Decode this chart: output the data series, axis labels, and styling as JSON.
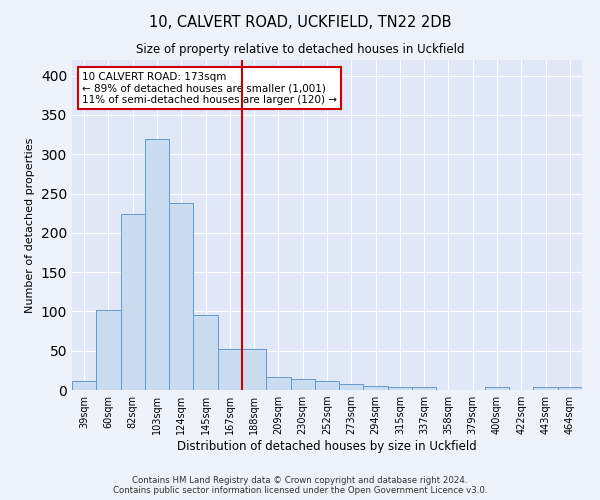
{
  "title1": "10, CALVERT ROAD, UCKFIELD, TN22 2DB",
  "title2": "Size of property relative to detached houses in Uckfield",
  "xlabel": "Distribution of detached houses by size in Uckfield",
  "ylabel": "Number of detached properties",
  "categories": [
    "39sqm",
    "60sqm",
    "82sqm",
    "103sqm",
    "124sqm",
    "145sqm",
    "167sqm",
    "188sqm",
    "209sqm",
    "230sqm",
    "252sqm",
    "273sqm",
    "294sqm",
    "315sqm",
    "337sqm",
    "358sqm",
    "379sqm",
    "400sqm",
    "422sqm",
    "443sqm",
    "464sqm"
  ],
  "values": [
    12,
    102,
    224,
    320,
    238,
    95,
    52,
    52,
    16,
    14,
    12,
    8,
    5,
    4,
    4,
    0,
    0,
    4,
    0,
    4,
    4
  ],
  "bar_color": "#ccdcf0",
  "bar_edge_color": "#6699cc",
  "vline_color": "#cc0000",
  "annotation_text": "10 CALVERT ROAD: 173sqm\n← 89% of detached houses are smaller (1,001)\n11% of semi-detached houses are larger (120) →",
  "annotation_box_color": "#ffffff",
  "annotation_box_edge": "#cc0000",
  "footer": "Contains HM Land Registry data © Crown copyright and database right 2024.\nContains public sector information licensed under the Open Government Licence v3.0.",
  "fig_facecolor": "#eef2fb",
  "ax_facecolor": "#e0e8f8",
  "ylim": [
    0,
    420
  ],
  "yticks": [
    0,
    50,
    100,
    150,
    200,
    250,
    300,
    350,
    400
  ]
}
